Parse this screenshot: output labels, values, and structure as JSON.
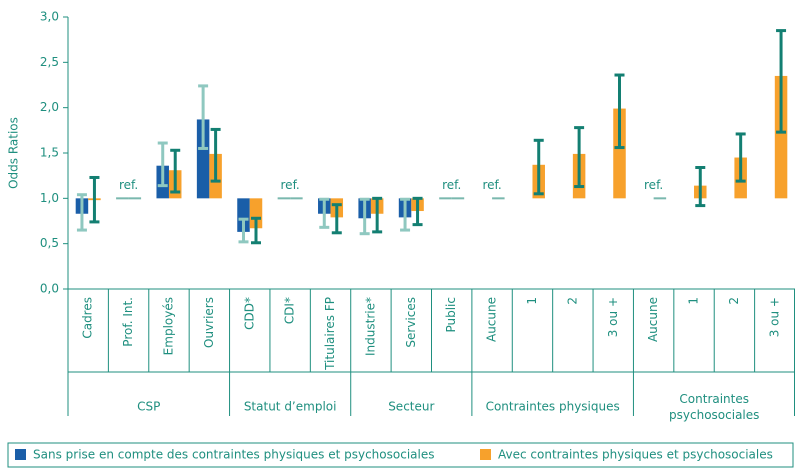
{
  "chart_data": {
    "type": "bar",
    "ylabel": "Odds Ratios",
    "categories": [
      "Cadres",
      "Prof. Int.",
      "Employés",
      "Ouvriers",
      "CDD*",
      "CDI*",
      "Titulaires FP",
      "Industrie*",
      "Services",
      "Public",
      "Aucune",
      "1",
      "2",
      "3 ou +",
      "Aucune",
      "1",
      "2",
      "3 ou +"
    ],
    "groups": [
      {
        "name": "CSP",
        "count": 4
      },
      {
        "name": "Statut d’emploi",
        "count": 3
      },
      {
        "name": "Secteur",
        "count": 3
      },
      {
        "name": "Contraintes physiques",
        "count": 4
      },
      {
        "name": "Contraintes\npsychosociales",
        "count": 4
      }
    ],
    "series": [
      {
        "name": "Sans prise en compte des contraintes physiques et psychosociales",
        "color": "#1a5ea8",
        "error_color": "#8fc8c0",
        "values": [
          0.83,
          1.0,
          1.36,
          1.87,
          0.63,
          1.0,
          0.83,
          0.78,
          0.79,
          1.0,
          null,
          null,
          null,
          null,
          null,
          null,
          null,
          null
        ],
        "ci_low": [
          0.65,
          null,
          1.14,
          1.55,
          0.52,
          null,
          0.68,
          0.61,
          0.65,
          null,
          null,
          null,
          null,
          null,
          null,
          null,
          null,
          null
        ],
        "ci_high": [
          1.04,
          null,
          1.61,
          2.24,
          0.77,
          null,
          0.99,
          0.99,
          0.99,
          null,
          null,
          null,
          null,
          null,
          null,
          null,
          null,
          null
        ]
      },
      {
        "name": "Avec contraintes physiques et psychosociales",
        "color": "#f7a12c",
        "error_color": "#137f72",
        "values": [
          0.98,
          1.0,
          1.31,
          1.49,
          0.67,
          1.0,
          0.79,
          0.83,
          0.86,
          1.0,
          1.0,
          1.37,
          1.49,
          1.99,
          1.0,
          1.14,
          1.45,
          2.35
        ],
        "value_labels": [
          null,
          "ref.",
          null,
          null,
          null,
          "ref.",
          null,
          null,
          null,
          "ref.",
          "ref.",
          null,
          null,
          null,
          "ref.",
          null,
          null,
          null
        ],
        "ci_low": [
          0.74,
          null,
          1.07,
          1.19,
          0.51,
          null,
          0.62,
          0.63,
          0.71,
          null,
          null,
          1.05,
          1.13,
          1.56,
          null,
          0.92,
          1.19,
          1.73
        ],
        "ci_high": [
          1.23,
          null,
          1.53,
          1.76,
          0.78,
          null,
          0.93,
          1.0,
          1.0,
          null,
          null,
          1.64,
          1.78,
          2.36,
          null,
          1.34,
          1.71,
          2.85
        ]
      }
    ],
    "base": 1.0,
    "ylim": [
      0,
      3
    ],
    "yticks": [
      {
        "value": 0,
        "label": "0,0"
      },
      {
        "value": 0.5,
        "label": "0,5"
      },
      {
        "value": 1,
        "label": "1,0"
      },
      {
        "value": 1.5,
        "label": "1,5"
      },
      {
        "value": 2,
        "label": "2,0"
      },
      {
        "value": 2.5,
        "label": "2,5"
      },
      {
        "value": 3,
        "label": "3,0"
      }
    ]
  }
}
